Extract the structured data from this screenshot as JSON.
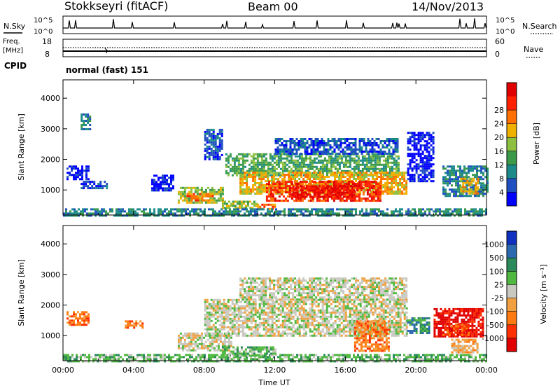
{
  "header": {
    "station": "Stokkseyri (fitACF)",
    "beam": "Beam 00",
    "date": "14/Nov/2013"
  },
  "nsky_panel": {
    "left_label": "N.Sky",
    "right_label": "N.Search",
    "ytick_top": "10^5",
    "ytick_bottom": "10^0"
  },
  "freq_panel": {
    "left_label_1": "Freq.",
    "left_label_2": "[MHz]",
    "left_tick_top": "18",
    "left_tick_bottom": "8",
    "right_label": "Nave",
    "right_tick_top": "60",
    "right_tick_bottom": "0"
  },
  "cpid_panel": {
    "label": "CPID",
    "value": "normal (fast) 151"
  },
  "chart_data": [
    {
      "type": "heatmap",
      "name": "Power",
      "xlabel": "",
      "ylabel": "Slant Range [km]",
      "x_range_hours": [
        0,
        24
      ],
      "ylim": [
        180,
        4600
      ],
      "yticks": [
        "1000",
        "2000",
        "3000",
        "4000"
      ],
      "xticks": [
        "00:00",
        "04:00",
        "08:00",
        "12:00",
        "16:00",
        "20:00",
        "00:00"
      ],
      "colorbar": {
        "label": "Power [dB]",
        "ticks": [
          "4",
          "8",
          "12",
          "16",
          "20",
          "24",
          "28"
        ],
        "colors": [
          "#0000ff",
          "#1f4fc0",
          "#1d8a8a",
          "#3a9a4a",
          "#8dc040",
          "#f0b000",
          "#ff7000",
          "#ff2000",
          "#e00000"
        ]
      },
      "regions": [
        {
          "t0": 0.2,
          "t1": 1.5,
          "r0": 1350,
          "r1": 1800,
          "level": 0
        },
        {
          "t0": 1.0,
          "t1": 2.5,
          "r0": 1050,
          "r1": 1300,
          "level": 1
        },
        {
          "t0": 5.0,
          "t1": 6.2,
          "r0": 1000,
          "r1": 1500,
          "level": 0
        },
        {
          "t0": 6.5,
          "t1": 9.0,
          "r0": 600,
          "r1": 1100,
          "level": 4
        },
        {
          "t0": 7.0,
          "t1": 8.5,
          "r0": 650,
          "r1": 900,
          "level": 6
        },
        {
          "t0": 9.0,
          "t1": 11.0,
          "r0": 400,
          "r1": 650,
          "level": 4
        },
        {
          "t0": 11.0,
          "t1": 12.0,
          "r0": 350,
          "r1": 550,
          "level": 6
        },
        {
          "t0": 0.0,
          "t1": 24.0,
          "r0": 180,
          "r1": 400,
          "level": 2
        },
        {
          "t0": 9.2,
          "t1": 19.0,
          "r0": 1500,
          "r1": 2200,
          "level": 3
        },
        {
          "t0": 10.0,
          "t1": 19.5,
          "r0": 900,
          "r1": 1600,
          "level": 5
        },
        {
          "t0": 11.5,
          "t1": 18.0,
          "r0": 650,
          "r1": 1300,
          "level": 7
        },
        {
          "t0": 13.0,
          "t1": 16.5,
          "r0": 750,
          "r1": 1150,
          "level": 8
        },
        {
          "t0": 12.0,
          "t1": 19.0,
          "r0": 2200,
          "r1": 2700,
          "level": 1
        },
        {
          "t0": 19.5,
          "t1": 21.0,
          "r0": 1300,
          "r1": 2900,
          "level": 0
        },
        {
          "t0": 21.5,
          "t1": 24.0,
          "r0": 800,
          "r1": 1800,
          "level": 2
        },
        {
          "t0": 22.5,
          "t1": 23.5,
          "r0": 900,
          "r1": 1400,
          "level": 5
        },
        {
          "t0": 1.0,
          "t1": 1.5,
          "r0": 3000,
          "r1": 3500,
          "level": 2
        },
        {
          "t0": 8.0,
          "t1": 9.0,
          "r0": 2000,
          "r1": 3000,
          "level": 1
        }
      ]
    },
    {
      "type": "heatmap",
      "name": "Velocity",
      "xlabel": "Time UT",
      "ylabel": "Slant Range [km]",
      "x_range_hours": [
        0,
        24
      ],
      "ylim": [
        180,
        4600
      ],
      "yticks": [
        "1000",
        "2000",
        "3000",
        "4000"
      ],
      "xticks": [
        "00:00",
        "04:00",
        "08:00",
        "12:00",
        "16:00",
        "20:00",
        "00:00"
      ],
      "colorbar": {
        "label": "Velocity [m s⁻¹]",
        "ticks": [
          "1000",
          "500",
          "100",
          "25",
          "-25",
          "-100",
          "-500",
          "-1000"
        ],
        "colors": [
          "#1030c0",
          "#2b6ab0",
          "#2a8a5a",
          "#50b840",
          "#c8c8c0",
          "#f0a040",
          "#ff7a10",
          "#ff3000",
          "#e00000"
        ]
      },
      "regions": [
        {
          "t0": 0.2,
          "t1": 1.5,
          "r0": 1350,
          "r1": 1800,
          "level": 6
        },
        {
          "t0": 3.5,
          "t1": 4.5,
          "r0": 1250,
          "r1": 1500,
          "level": 6
        },
        {
          "t0": 0.0,
          "t1": 24.0,
          "r0": 180,
          "r1": 400,
          "level": 3
        },
        {
          "t0": 6.5,
          "t1": 9.5,
          "r0": 550,
          "r1": 1100,
          "level": 4
        },
        {
          "t0": 9.0,
          "t1": 12.0,
          "r0": 350,
          "r1": 650,
          "level": 3
        },
        {
          "t0": 8.0,
          "t1": 19.5,
          "r0": 1000,
          "r1": 2200,
          "level": 4
        },
        {
          "t0": 10.0,
          "t1": 19.5,
          "r0": 2200,
          "r1": 2900,
          "level": 4
        },
        {
          "t0": 16.5,
          "t1": 18.5,
          "r0": 500,
          "r1": 1500,
          "level": 6
        },
        {
          "t0": 19.5,
          "t1": 20.8,
          "r0": 1100,
          "r1": 1600,
          "level": 2
        },
        {
          "t0": 21.0,
          "t1": 23.8,
          "r0": 950,
          "r1": 1900,
          "level": 8
        },
        {
          "t0": 21.5,
          "t1": 23.0,
          "r0": 1000,
          "r1": 1400,
          "level": 7
        },
        {
          "t0": 22.0,
          "t1": 23.5,
          "r0": 450,
          "r1": 900,
          "level": 5
        }
      ]
    }
  ]
}
